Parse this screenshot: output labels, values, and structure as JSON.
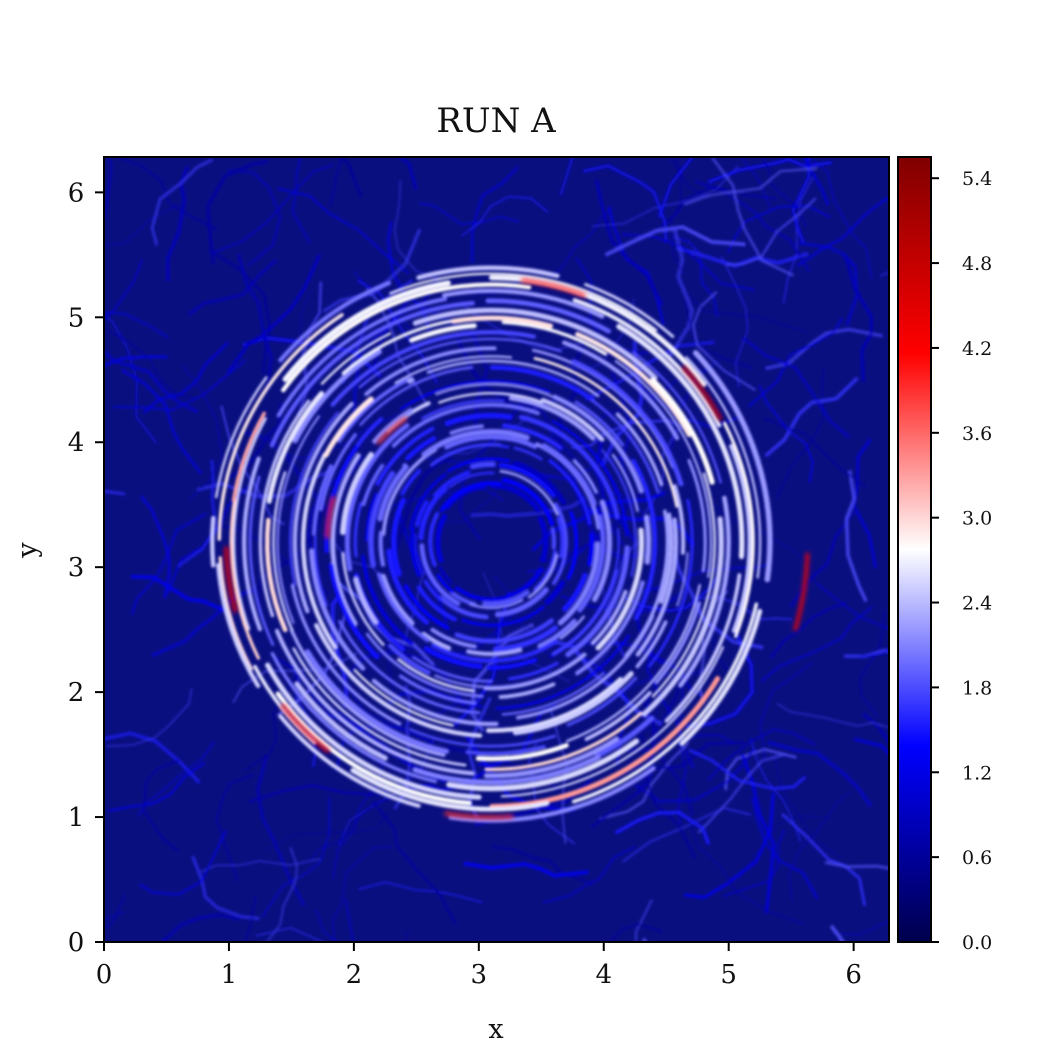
{
  "chart_data": {
    "type": "heatmap",
    "title": "RUN A",
    "xlabel": "x",
    "ylabel": "y",
    "xlim": [
      0,
      6.283
    ],
    "ylim": [
      0,
      6.283
    ],
    "xticks": [
      "0",
      "1",
      "2",
      "3",
      "4",
      "5",
      "6"
    ],
    "yticks": [
      "0",
      "1",
      "2",
      "3",
      "4",
      "5",
      "6"
    ],
    "colorbar": {
      "ticks": [
        "0.0",
        "0.6",
        "1.2",
        "1.8",
        "2.4",
        "3.0",
        "3.6",
        "4.2",
        "4.8",
        "5.4"
      ],
      "range": [
        0,
        5.55
      ],
      "colormap": "seismic",
      "colors": [
        "#00004c",
        "#0000ff",
        "#ffffff",
        "#ff0000",
        "#800000"
      ]
    },
    "field": {
      "description_of_structure": "concentric vortex rings",
      "center": [
        3.1,
        3.2
      ],
      "rings": [
        {
          "radius": 0.55,
          "value": 1.9
        },
        {
          "radius": 0.9,
          "value": 2.2
        },
        {
          "radius": 1.2,
          "value": 2.4
        },
        {
          "radius": 1.5,
          "value": 2.6
        },
        {
          "radius": 1.8,
          "value": 2.8
        },
        {
          "radius": 2.1,
          "value": 3.0
        }
      ],
      "hotspots": [
        {
          "x": 1.0,
          "y": 2.9,
          "value": 4.2
        },
        {
          "x": 1.8,
          "y": 3.4,
          "value": 4.0
        },
        {
          "x": 2.3,
          "y": 4.1,
          "value": 3.8
        },
        {
          "x": 4.8,
          "y": 4.4,
          "value": 4.5
        },
        {
          "x": 5.6,
          "y": 2.8,
          "value": 4.3
        },
        {
          "x": 1.6,
          "y": 1.7,
          "value": 4.1
        },
        {
          "x": 3.0,
          "y": 1.0,
          "value": 3.9
        },
        {
          "x": 3.6,
          "y": 5.25,
          "value": 4.0
        }
      ],
      "background_value": 0.35
    }
  }
}
